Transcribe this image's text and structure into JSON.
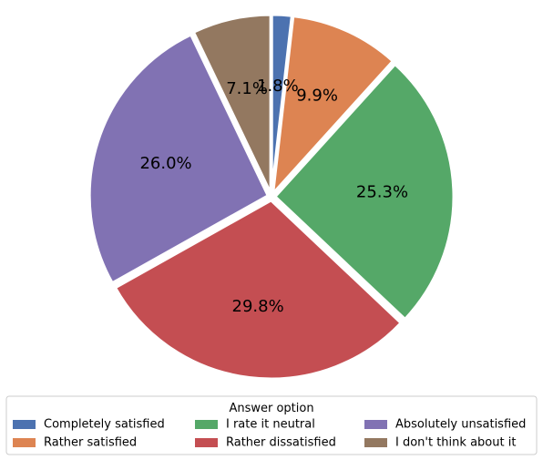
{
  "chart_data": {
    "type": "pie",
    "legend_title": "Answer option",
    "legend_placement": "bottom",
    "categories": [
      "Completely satisfied",
      "Rather satisfied",
      "I rate it neutral",
      "Rather dissatisfied",
      "Absolutely unsatisfied",
      "I don't think about it"
    ],
    "values": [
      1.8,
      9.9,
      25.3,
      29.8,
      26.0,
      7.1
    ],
    "labels": [
      "1.8%",
      "9.9%",
      "25.3%",
      "29.8%",
      "26.0%",
      "7.1%"
    ],
    "colors": [
      "#4c72b0",
      "#dd8452",
      "#55a868",
      "#c44e52",
      "#8172b3",
      "#937860"
    ],
    "start": "12 o'clock",
    "direction": "clockwise",
    "exploded": true
  }
}
